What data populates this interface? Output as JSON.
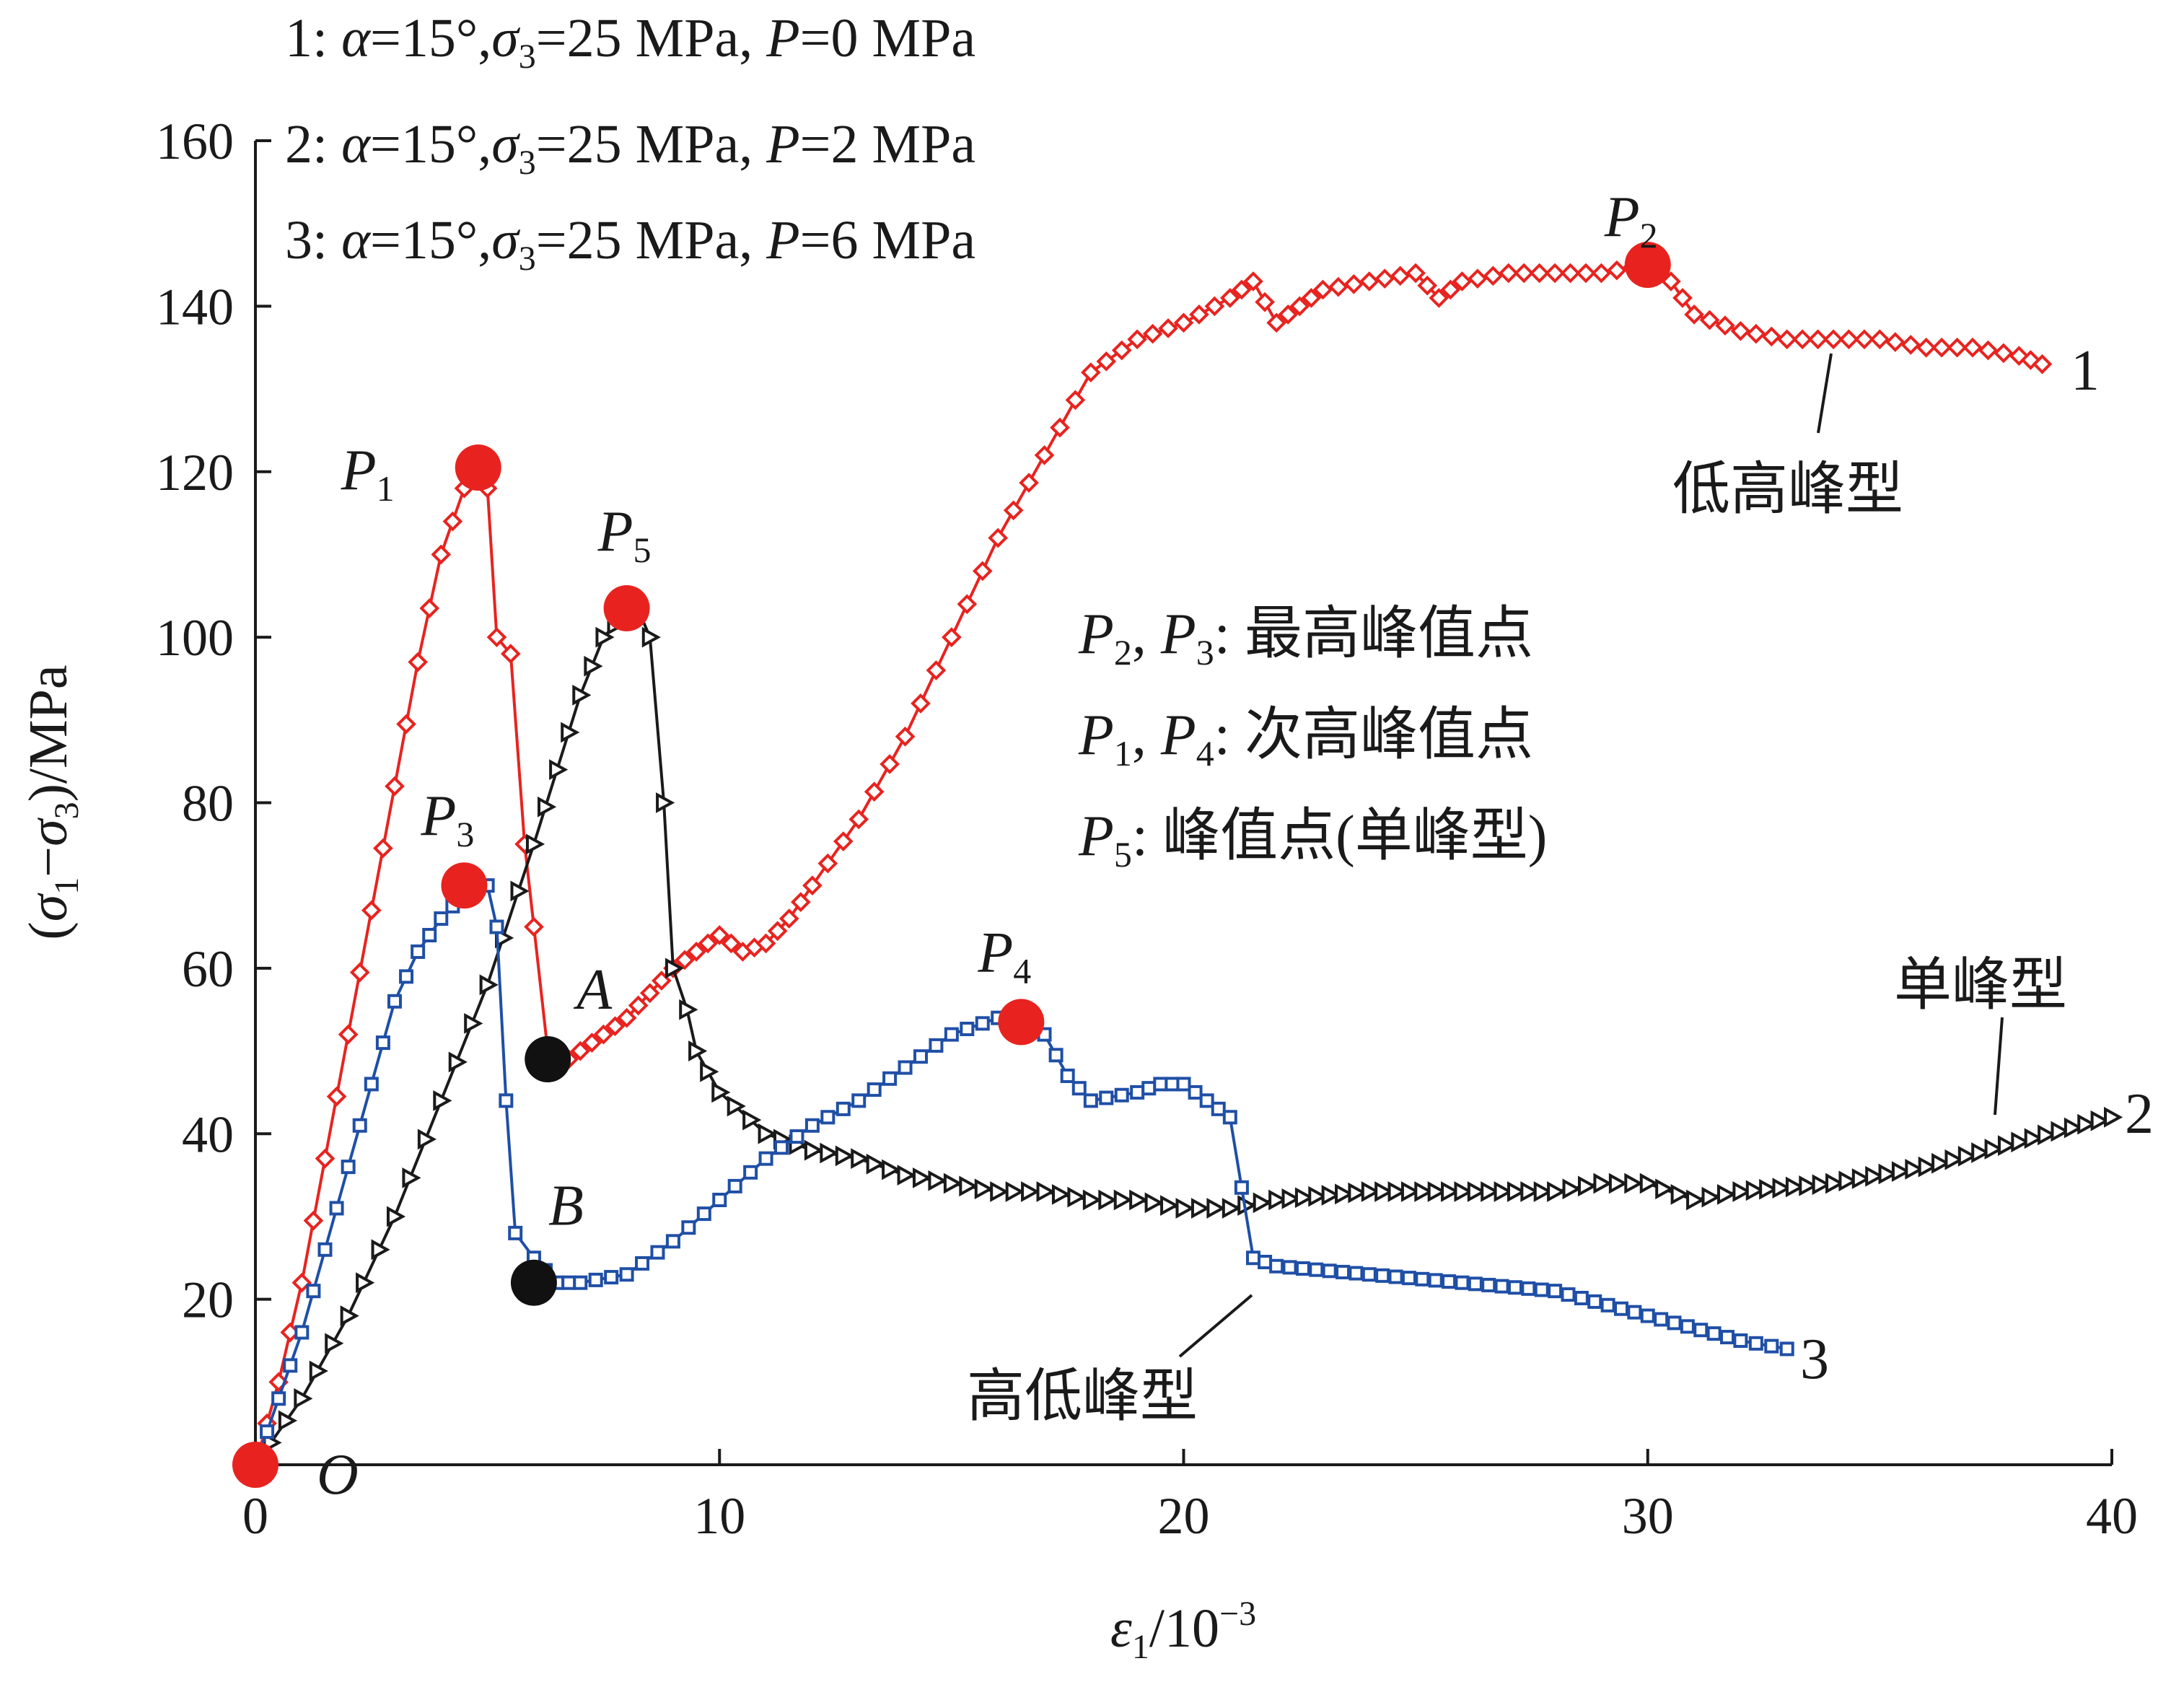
{
  "chart_data": {
    "type": "line",
    "title": "",
    "xlabel": "ε1/10−3",
    "ylabel": "(σ1−σ3)/MPa",
    "xlim": [
      0,
      40
    ],
    "ylim": [
      0,
      160
    ],
    "x_ticks": [
      "0",
      "10",
      "20",
      "30",
      "40"
    ],
    "y_ticks": [
      "20",
      "40",
      "60",
      "80",
      "100",
      "120",
      "140",
      "160"
    ],
    "grid": false,
    "legend": {
      "placement": "top-left",
      "entries": [
        "1: α=15°,σ3=25 MPa, P=0 MPa",
        "2: α=15°,σ3=25 MPa, P=2 MPa",
        "3: α=15°,σ3=25 MPa, P=6 MPa"
      ]
    },
    "series": [
      {
        "label": "1",
        "color": "#e8231f",
        "marker": "diamond",
        "x": [
          0,
          0.5,
          1,
          1.5,
          2,
          2.5,
          3,
          3.5,
          4,
          4.5,
          4.8,
          5.0,
          5.2,
          5.5,
          5.8,
          6.0,
          6.3,
          6.5,
          7,
          7.5,
          8,
          8.5,
          9,
          9.5,
          10,
          10.5,
          11,
          11.5,
          12,
          13,
          14,
          15,
          16,
          17,
          18,
          19,
          20,
          21,
          21.5,
          22,
          22.5,
          23,
          24,
          25,
          25.5,
          26,
          27,
          28,
          29,
          30,
          30.5,
          31,
          32,
          33,
          34,
          35,
          36,
          37,
          38,
          38.5
        ],
        "y": [
          0,
          10,
          22,
          37,
          52,
          67,
          82,
          97,
          110,
          118,
          120,
          118,
          100,
          98,
          75,
          65,
          50,
          48,
          50,
          52,
          54,
          57,
          60,
          62,
          64,
          62,
          63,
          66,
          70,
          78,
          88,
          100,
          112,
          122,
          132,
          136,
          138,
          141,
          143,
          138,
          140,
          142,
          143,
          144,
          141,
          143,
          144,
          144,
          144,
          145,
          143,
          139,
          137,
          136,
          136,
          136,
          135,
          135,
          134,
          133
        ]
      },
      {
        "label": "2",
        "color": "#1a1a1a",
        "marker": "triangle-right",
        "x": [
          0,
          1,
          2,
          3,
          4,
          5,
          6,
          6.5,
          7,
          7.5,
          8,
          8.2,
          8.5,
          8.8,
          9.0,
          9.3,
          9.5,
          10,
          11,
          12,
          13,
          14,
          15,
          16,
          17,
          18,
          19,
          20,
          21,
          22,
          24,
          26,
          28,
          29,
          30,
          31,
          32,
          34,
          36,
          38,
          40
        ],
        "y": [
          0,
          8,
          18,
          30,
          44,
          58,
          75,
          84,
          93,
          100,
          103,
          104,
          100,
          80,
          60,
          55,
          50,
          45,
          40,
          38,
          37,
          35,
          34,
          33,
          33,
          32,
          32,
          31,
          31,
          32,
          33,
          33,
          33,
          34,
          34,
          32,
          33,
          34,
          36,
          39,
          42
        ]
      },
      {
        "label": "3",
        "color": "#1f4fa6",
        "marker": "square",
        "x": [
          0,
          0.5,
          1,
          1.5,
          2,
          2.5,
          3,
          3.5,
          4,
          4.5,
          5,
          5.2,
          5.4,
          5.6,
          6,
          6.5,
          7,
          8,
          9,
          10,
          11,
          12,
          13,
          14,
          15,
          16,
          16.5,
          17,
          17.5,
          18,
          19,
          19.5,
          20,
          20.5,
          21,
          21.5,
          22,
          24,
          26,
          28,
          30,
          32,
          33
        ],
        "y": [
          0,
          8,
          16,
          26,
          36,
          46,
          56,
          62,
          66,
          69,
          70,
          65,
          44,
          28,
          25,
          22,
          22,
          23,
          27,
          32,
          37,
          41,
          44,
          48,
          52,
          54,
          54,
          52,
          47,
          44,
          45,
          46,
          46,
          44,
          42,
          25,
          24,
          23,
          22,
          21,
          18,
          15,
          14
        ]
      }
    ],
    "key_points": [
      {
        "label": "P1",
        "x": 4.8,
        "y": 120.5,
        "color": "#e8231f"
      },
      {
        "label": "P2",
        "x": 30,
        "y": 145,
        "color": "#e8231f"
      },
      {
        "label": "P3",
        "x": 4.5,
        "y": 70,
        "color": "#e8231f"
      },
      {
        "label": "P4",
        "x": 16.5,
        "y": 53.5,
        "color": "#e8231f"
      },
      {
        "label": "P5",
        "x": 8,
        "y": 103.5,
        "color": "#e8231f"
      },
      {
        "label": "O",
        "x": 0,
        "y": 0,
        "color": "#e8231f"
      },
      {
        "label": "A",
        "x": 6.3,
        "y": 49,
        "color": "#111111"
      },
      {
        "label": "B",
        "x": 6,
        "y": 22,
        "color": "#111111"
      }
    ],
    "annotations": {
      "type_low_high": "低高峰型",
      "type_high_low": "高低峰型",
      "type_single": "单峰型",
      "note_1": "P2, P3: 最高峰值点",
      "note_2": "P1, P4: 次高峰值点",
      "note_3": "P5: 峰值点(单峰型)"
    }
  }
}
